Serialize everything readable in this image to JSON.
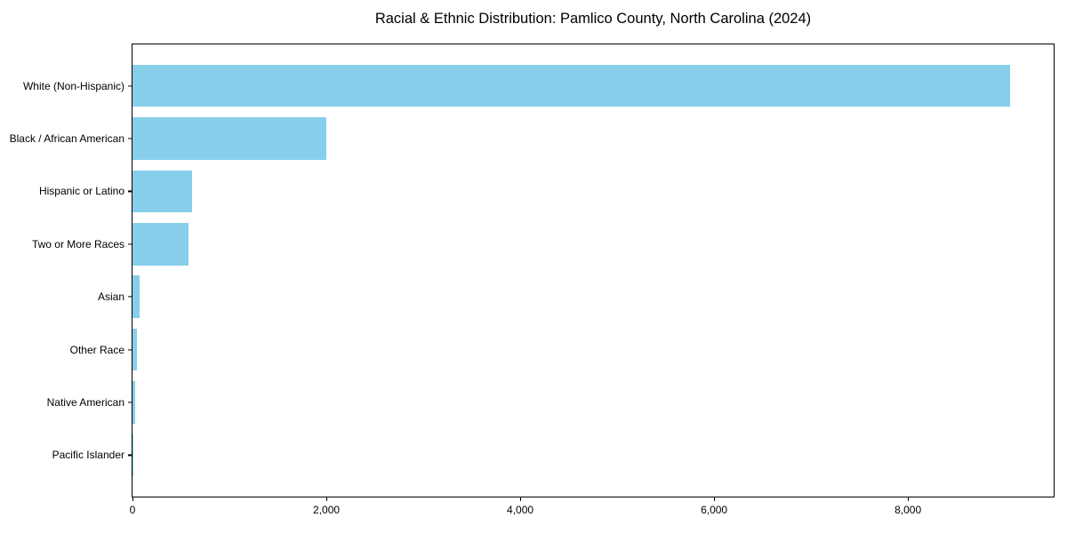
{
  "chart_data": {
    "type": "bar",
    "orientation": "horizontal",
    "title": "Racial & Ethnic Distribution: Pamlico County, North Carolina (2024)",
    "categories": [
      "White (Non-Hispanic)",
      "Black / African American",
      "Hispanic or Latino",
      "Two or More Races",
      "Asian",
      "Other Race",
      "Native American",
      "Pacific Islander"
    ],
    "values": [
      9050,
      2000,
      610,
      575,
      70,
      45,
      30,
      5
    ],
    "xlabel": "",
    "ylabel": "",
    "xlim": [
      0,
      9503
    ],
    "x_ticks": [
      0,
      2000,
      4000,
      6000,
      8000
    ],
    "x_tick_labels": [
      "0",
      "2,000",
      "4,000",
      "6,000",
      "8,000"
    ],
    "bar_color": "#87CEEB",
    "axis_color": "#000000",
    "grid": false,
    "legend_position": "none"
  }
}
